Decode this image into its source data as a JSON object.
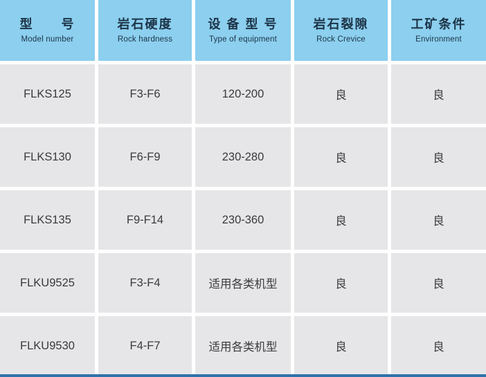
{
  "colors": {
    "header_bg": "#8ccfee",
    "header_text": "#1c3347",
    "cell_bg": "#e6e6e8",
    "cell_text": "#3a3a3c",
    "gutter": "#ffffff",
    "bottom_strip": "#2e73ab"
  },
  "table": {
    "headers": [
      {
        "cn": "型　　号",
        "en": "Model number"
      },
      {
        "cn": "岩石硬度",
        "en": "Rock hardness"
      },
      {
        "cn": "设 备 型 号",
        "en": "Type of equipment"
      },
      {
        "cn": "岩石裂隙",
        "en": "Rock Crevice"
      },
      {
        "cn": "工矿条件",
        "en": "Environment"
      }
    ],
    "rows": [
      [
        "FLKS125",
        "F3-F6",
        "120-200",
        "良",
        "良"
      ],
      [
        "FLKS130",
        "F6-F9",
        "230-280",
        "良",
        "良"
      ],
      [
        "FLKS135",
        "F9-F14",
        "230-360",
        "良",
        "良"
      ],
      [
        "FLKU9525",
        "F3-F4",
        "适用各类机型",
        "良",
        "良"
      ],
      [
        "FLKU9530",
        "F4-F7",
        "适用各类机型",
        "良",
        "良"
      ]
    ]
  },
  "chart_data": {
    "type": "table",
    "columns": [
      "型号 (Model number)",
      "岩石硬度 (Rock hardness)",
      "设备型号 (Type of equipment)",
      "岩石裂隙 (Rock Crevice)",
      "工矿条件 (Environment)"
    ],
    "rows": [
      [
        "FLKS125",
        "F3-F6",
        "120-200",
        "良",
        "良"
      ],
      [
        "FLKS130",
        "F6-F9",
        "230-280",
        "良",
        "良"
      ],
      [
        "FLKS135",
        "F9-F14",
        "230-360",
        "良",
        "良"
      ],
      [
        "FLKU9525",
        "F3-F4",
        "适用各类机型",
        "良",
        "良"
      ],
      [
        "FLKU9530",
        "F4-F7",
        "适用各类机型",
        "良",
        "良"
      ]
    ]
  }
}
